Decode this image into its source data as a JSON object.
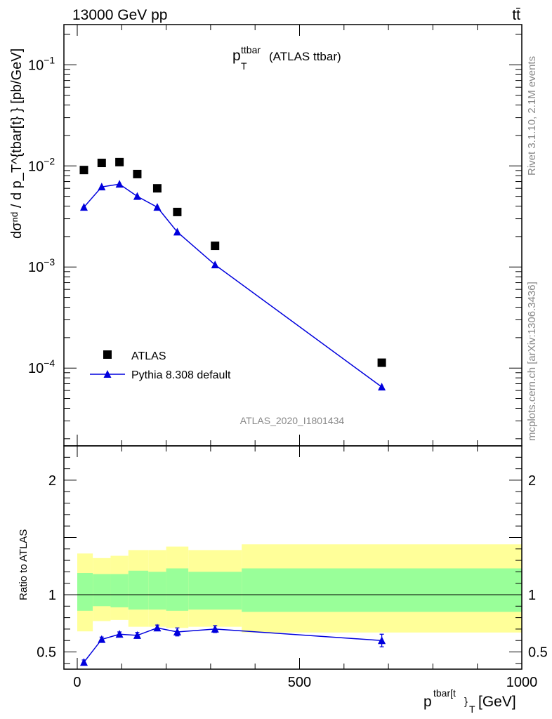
{
  "header": {
    "energy_label": "13000 GeV pp",
    "process_label": "tt̄"
  },
  "side_labels": {
    "rivet": "Rivet 3.1.10,  2.1M events",
    "mcplots": "mcplots.cern.ch [arXiv:1306.3436]"
  },
  "chart_data": {
    "type": "scatter",
    "title_main": "p",
    "title_sub": "T",
    "title_sup": "ttbar",
    "title_rest": "(ATLAS ttbar)",
    "analysis_tag": "ATLAS_2020_I1801434",
    "ylabel_top": "dσⁿᵈ / d p_T^{tbar[t} } [pb/GeV]",
    "ylabel_ratio": "Ratio to ATLAS",
    "xlabel_main": "p",
    "xlabel_sup": "tbar[t",
    "xlabel_sub": "}",
    "xlabel_subT": "T",
    "xlabel_unit": "[GeV]",
    "xlim": [
      -30,
      1000
    ],
    "ylim_top": [
      1.7e-05,
      0.25
    ],
    "ylim_ratio": [
      0.35,
      2.3
    ],
    "y_scale_top": "log",
    "x_ticks": [
      "0",
      "500",
      "1000"
    ],
    "y_ticks_top": [
      {
        "base": "10",
        "exp": "−1"
      },
      {
        "base": "10",
        "exp": "−2"
      },
      {
        "base": "10",
        "exp": "−3"
      },
      {
        "base": "10",
        "exp": "−4"
      }
    ],
    "y_ticks_ratio": [
      "0.5",
      "1",
      "2"
    ],
    "legend_position": "lower-left",
    "series": [
      {
        "name": "ATLAS",
        "color": "#000000",
        "marker": "square",
        "x": [
          15,
          55,
          95,
          135,
          180,
          225,
          310,
          685
        ],
        "y": [
          0.0091,
          0.0107,
          0.0109,
          0.0083,
          0.006,
          0.0035,
          0.00162,
          0.000113
        ]
      },
      {
        "name": "Pythia 8.308 default",
        "color": "#0000dd",
        "marker": "triangle",
        "x": [
          15,
          55,
          95,
          135,
          180,
          225,
          310,
          685
        ],
        "y": [
          0.0039,
          0.0062,
          0.0066,
          0.005,
          0.0039,
          0.00222,
          0.00105,
          6.5e-05
        ],
        "ratio": [
          0.41,
          0.61,
          0.655,
          0.645,
          0.71,
          0.675,
          0.7,
          0.6
        ],
        "ratio_err": [
          0.02,
          0.02,
          0.02,
          0.025,
          0.025,
          0.035,
          0.03,
          0.055
        ]
      }
    ],
    "bands": {
      "edges": [
        0,
        35,
        75,
        115,
        160,
        200,
        250,
        370,
        1000
      ],
      "outer_color": "#ffff99",
      "inner_color": "#99ff99",
      "outer_lo": [
        0.68,
        0.77,
        0.78,
        0.72,
        0.72,
        0.71,
        0.72,
        0.67
      ],
      "outer_hi": [
        1.36,
        1.32,
        1.34,
        1.39,
        1.39,
        1.42,
        1.39,
        1.44
      ],
      "inner_lo": [
        0.86,
        0.9,
        0.89,
        0.87,
        0.87,
        0.86,
        0.87,
        0.85
      ],
      "inner_hi": [
        1.19,
        1.18,
        1.18,
        1.21,
        1.2,
        1.23,
        1.2,
        1.23
      ]
    }
  }
}
